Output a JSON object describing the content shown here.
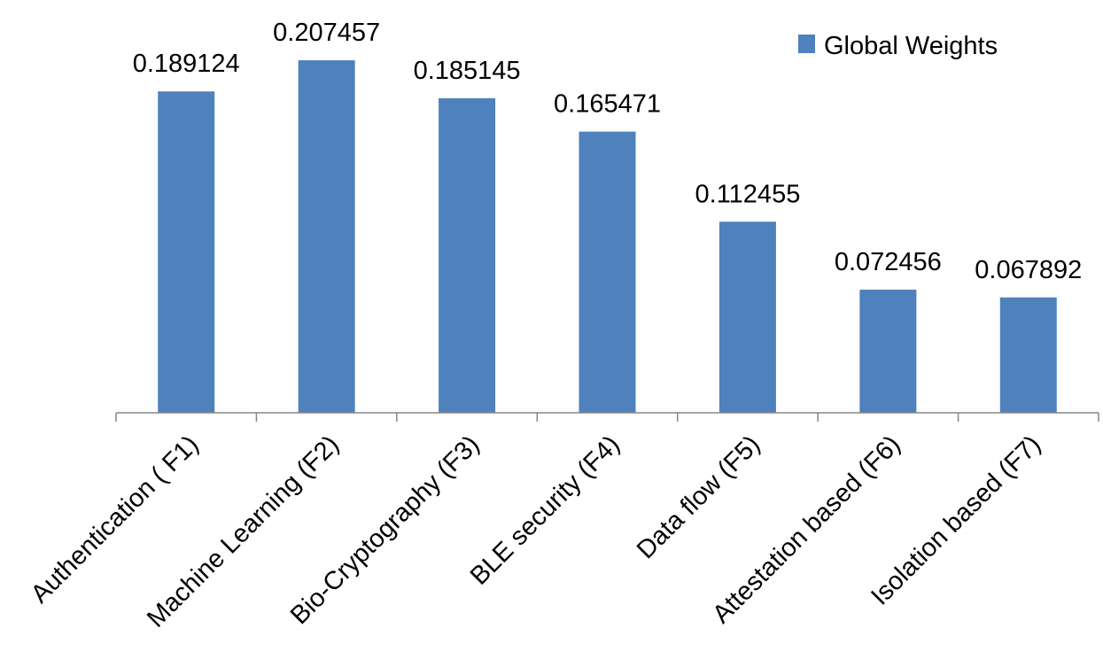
{
  "colors": {
    "bar": "#4F81BD",
    "axis": "#878787",
    "text": "#000000",
    "background": "#ffffff"
  },
  "legend": {
    "label": "Global Weights",
    "position": "top-right"
  },
  "chart_data": {
    "type": "bar",
    "title": "",
    "xlabel": "",
    "ylabel": "",
    "ylim": [
      0,
      0.22
    ],
    "grid": false,
    "categories": [
      "Authentication ( F1)",
      "Machine Learning (F2)",
      "Bio-Cryptography (F3)",
      "BLE security (F4)",
      "Data flow (F5)",
      "Attestation based (F6)",
      "Isolation based (F7)"
    ],
    "series": [
      {
        "name": "Global Weights",
        "values": [
          0.189124,
          0.207457,
          0.185145,
          0.165471,
          0.112455,
          0.072456,
          0.067892
        ],
        "labels": [
          "0.189124",
          "0.207457",
          "0.185145",
          "0.165471",
          "0.112455",
          "0.072456",
          "0.067892"
        ]
      }
    ]
  }
}
